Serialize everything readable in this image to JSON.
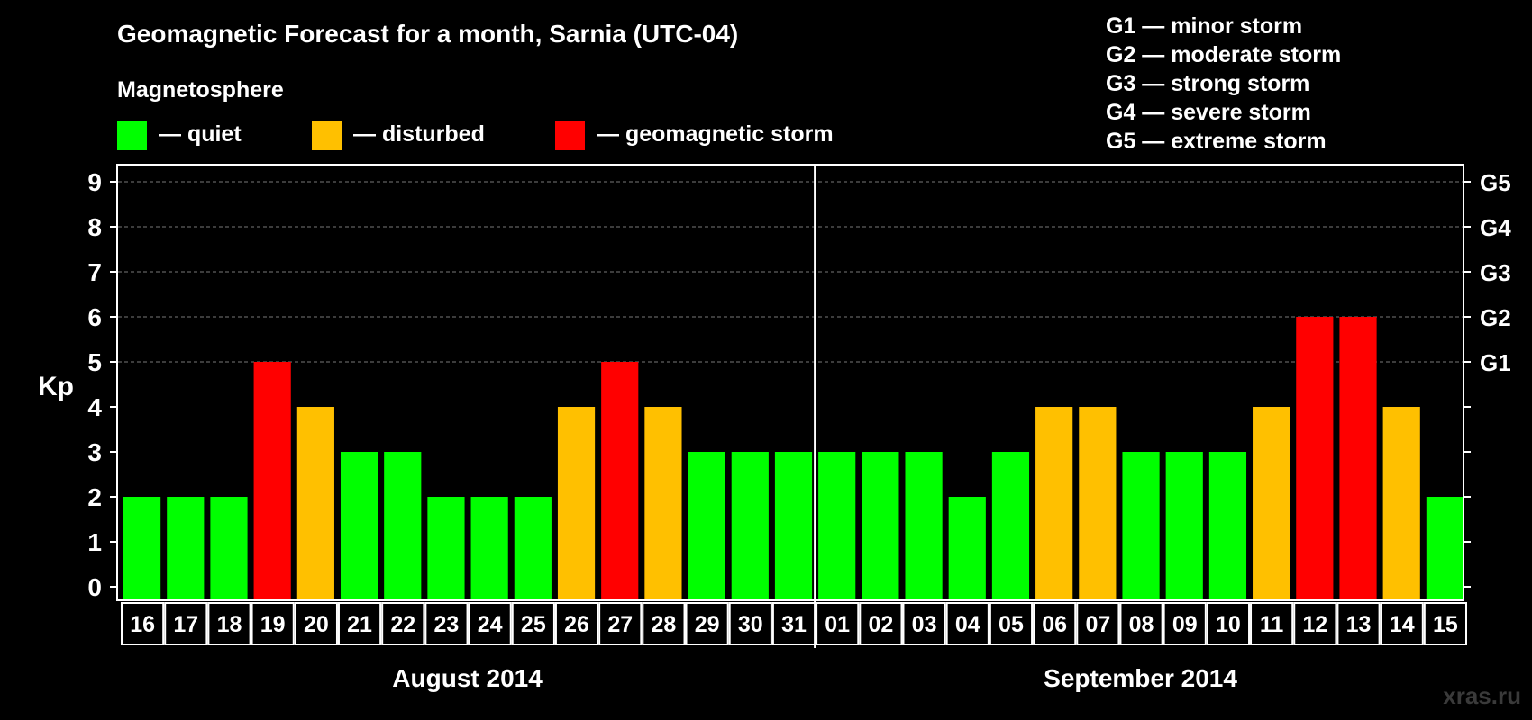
{
  "chart_data": {
    "type": "bar",
    "title": "Geomagnetic Forecast for a month, Sarnia (UTC-04)",
    "legend_title": "Magnetosphere",
    "legend": [
      {
        "key": "quiet",
        "label": "— quiet",
        "color": "#00ff00"
      },
      {
        "key": "disturbed",
        "label": "— disturbed",
        "color": "#ffc000"
      },
      {
        "key": "storm",
        "label": "— geomagnetic storm",
        "color": "#ff0000"
      }
    ],
    "storm_scale": [
      "G1 — minor storm",
      "G2 — moderate storm",
      "G3 — strong storm",
      "G4 — severe storm",
      "G5 — extreme storm"
    ],
    "ylabel": "Kp",
    "ylim": [
      0,
      9
    ],
    "yticks": [
      0,
      1,
      2,
      3,
      4,
      5,
      6,
      7,
      8,
      9
    ],
    "right_ticks": [
      {
        "value": 5,
        "label": "G1"
      },
      {
        "value": 6,
        "label": "G2"
      },
      {
        "value": 7,
        "label": "G3"
      },
      {
        "value": 8,
        "label": "G4"
      },
      {
        "value": 9,
        "label": "G5"
      }
    ],
    "grid_values": [
      5,
      6,
      7,
      8,
      9
    ],
    "categories": [
      "16",
      "17",
      "18",
      "19",
      "20",
      "21",
      "22",
      "23",
      "24",
      "25",
      "26",
      "27",
      "28",
      "29",
      "30",
      "31",
      "01",
      "02",
      "03",
      "04",
      "05",
      "06",
      "07",
      "08",
      "09",
      "10",
      "11",
      "12",
      "13",
      "14",
      "15"
    ],
    "values": [
      2,
      2,
      2,
      5,
      4,
      3,
      3,
      2,
      2,
      2,
      4,
      5,
      4,
      3,
      3,
      3,
      3,
      3,
      3,
      2,
      3,
      4,
      4,
      3,
      3,
      3,
      4,
      6,
      6,
      4,
      2
    ],
    "months": [
      {
        "label": "August 2014",
        "start": 0,
        "count": 16
      },
      {
        "label": "September 2014",
        "start": 16,
        "count": 15
      }
    ]
  },
  "watermark": "xras.ru"
}
